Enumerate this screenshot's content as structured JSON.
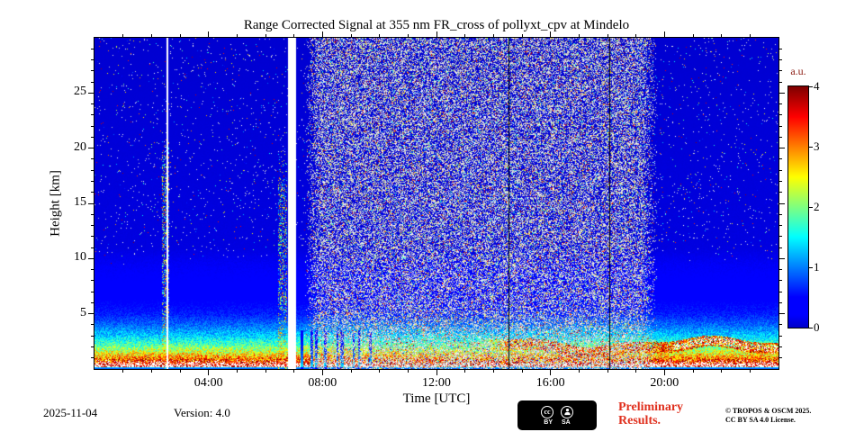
{
  "chart_data": {
    "type": "heatmap",
    "title": "Range Corrected Signal at 355 nm FR_cross of pollyxt_cpv at Mindelo",
    "xlabel": "Time [UTC]",
    "ylabel": "Height [km]",
    "x_range_hours": [
      0,
      24
    ],
    "x_tick_hours": [
      4,
      8,
      12,
      16,
      20
    ],
    "x_tick_labels": [
      "04:00",
      "08:00",
      "12:00",
      "16:00",
      "20:00"
    ],
    "x_minor_every_hours": 1,
    "y_range_km": [
      0,
      30
    ],
    "y_tick_km": [
      5,
      10,
      15,
      20,
      25
    ],
    "y_tick_labels": [
      "5",
      "10",
      "15",
      "20",
      "25"
    ],
    "y_minor_every_km": 1,
    "grid": false,
    "colorbar": {
      "title": "a.u.",
      "min": 0,
      "max": 4,
      "tick_values": [
        0,
        1,
        2,
        3,
        4
      ],
      "tick_labels": [
        "0",
        "1",
        "2",
        "3",
        "4"
      ],
      "colormap": "jet",
      "legend_position": "right"
    },
    "features": {
      "aerosol_boundary_layer": "Strong aerosol signal below ~3 km for the whole day; saturated white/red below ~1 km; thin cyan overlap strip at the very bottom",
      "daytime_noise": "Dense salt-and-pepper background-light noise at all heights between ~07:30 and ~19:45 UTC",
      "data_gaps": "White no-data columns near 02:33 UTC and 06:47-07:02 UTC",
      "clouds": "Narrow cloud/precipitation plumes with colored speckle up to ~20-22 km near 02:30 and 06:40 UTC; attenuated blue columns below 3.5 km between ~07:05 and ~09:45 UTC",
      "elevated_layer": "Wavy orange/red lofted layer around 1.5-2.5 km from ~13:00 UTC onward, partly saturating to white after ~20:30 UTC",
      "dark_lines": "Thin dark vertical profile lines near 14:33 and 18:04 UTC"
    },
    "render": {
      "seed": 42,
      "day_noise": {
        "start_hour": 7.35,
        "end_hour": 19.75,
        "ramp_hours": 0.55,
        "density": 0.5
      },
      "night_noise_density": 0.02,
      "gaps_hours": [
        [
          2.52,
          2.6
        ],
        [
          6.78,
          7.06
        ]
      ],
      "dark_lines_hours": [
        14.55,
        18.07
      ],
      "plumes": [
        {
          "hour": 2.5,
          "halfwidth_hours": 0.13,
          "top_km": 22
        },
        {
          "hour": 6.6,
          "halfwidth_hours": 0.15,
          "top_km": 20
        }
      ],
      "attenuated_columns": {
        "from_hour": 7.1,
        "to_hour": 9.8,
        "count": 9,
        "below_km": 3.5
      },
      "dust_band": {
        "start_hour": 12.3,
        "center_km": 1.75,
        "amplitude_km": 0.45,
        "halfwidth_km": 0.5,
        "white_blobs_after_hour": 20.3
      },
      "profile_points_km_au": [
        [
          0,
          0.85
        ],
        [
          0.12,
          0.85
        ],
        [
          0.14,
          4.4
        ],
        [
          0.35,
          4.3
        ],
        [
          0.6,
          3.6
        ],
        [
          1.0,
          3.0
        ],
        [
          1.5,
          2.4
        ],
        [
          2.2,
          1.8
        ],
        [
          3.0,
          1.3
        ],
        [
          4.0,
          0.9
        ],
        [
          5.0,
          0.6
        ],
        [
          6.5,
          0.38
        ],
        [
          8.5,
          0.22
        ],
        [
          11,
          0.08
        ],
        [
          30,
          0.02
        ]
      ]
    }
  },
  "footer": {
    "date": "2025-11-04",
    "version": "Version: 4.0",
    "preliminary_line1": "Preliminary",
    "preliminary_line2": "Results.",
    "copyright_line1": "© TROPOS & OSCM 2025.",
    "copyright_line2": "CC BY SA 4.0 License.",
    "badge": {
      "cc": "cc",
      "by": "BY",
      "sa": "SA"
    }
  },
  "colors": {
    "preliminary_red": "#e0301e",
    "colorbar_title_color": "#8b1a10",
    "axis_color": "#000000",
    "plot_background": "#000000",
    "page_background": "#ffffff"
  }
}
